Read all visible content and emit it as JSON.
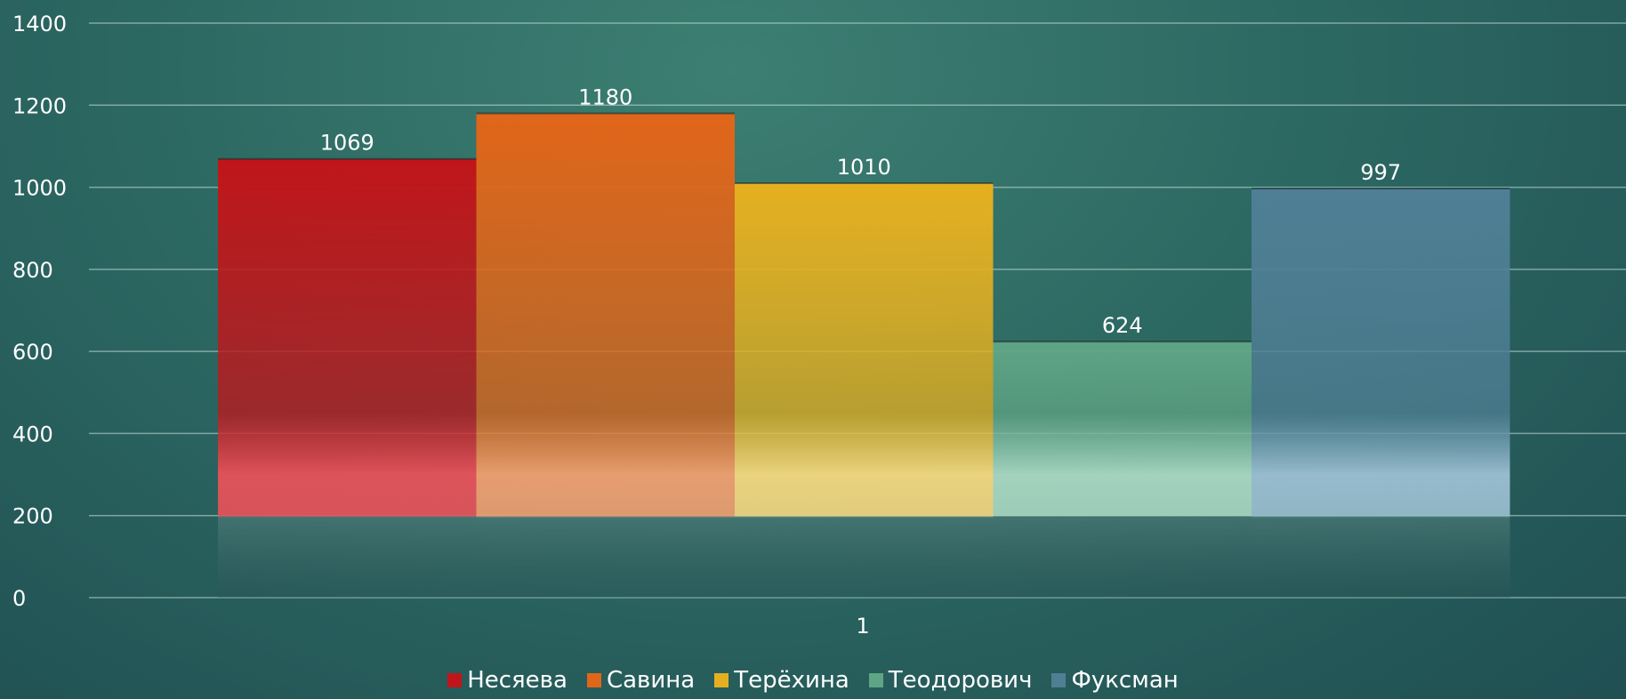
{
  "chart_data": {
    "type": "bar",
    "categories": [
      "1"
    ],
    "series": [
      {
        "name": "Несяева",
        "values": [
          1069
        ],
        "color": "#c0161a",
        "light": "#e8525a"
      },
      {
        "name": "Савина",
        "values": [
          1180
        ],
        "color": "#e0661a",
        "light": "#f0a070"
      },
      {
        "name": "Терёхина",
        "values": [
          1010
        ],
        "color": "#e5b020",
        "light": "#f4d880"
      },
      {
        "name": "Теодорович",
        "values": [
          624
        ],
        "color": "#5fa585",
        "light": "#a9d8c2"
      },
      {
        "name": "Фуксман",
        "values": [
          997
        ],
        "color": "#4f7f95",
        "light": "#9cc0d2"
      }
    ],
    "yticks": [
      "0",
      "200",
      "400",
      "600",
      "800",
      "1000",
      "1200",
      "1400"
    ],
    "ylim": [
      0,
      1400
    ],
    "grid": true,
    "legend_position": "bottom"
  }
}
